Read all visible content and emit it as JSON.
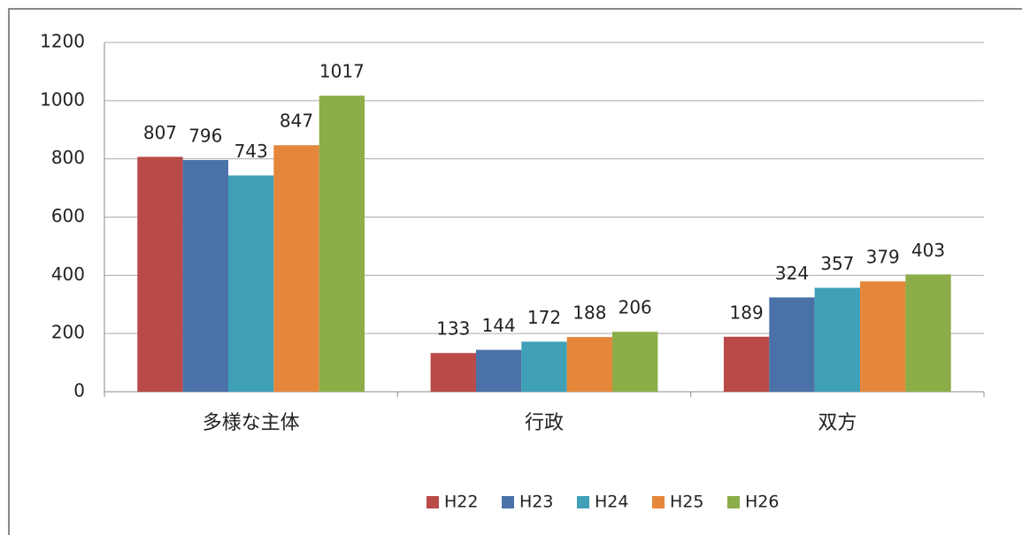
{
  "chart_data": {
    "type": "bar",
    "categories": [
      "多様な主体",
      "行政",
      "双方"
    ],
    "series": [
      {
        "name": "H22",
        "color": "#b94a48",
        "values": [
          807,
          133,
          189
        ]
      },
      {
        "name": "H23",
        "color": "#4a72a8",
        "values": [
          796,
          144,
          324
        ]
      },
      {
        "name": "H24",
        "color": "#3fa0b8",
        "values": [
          743,
          172,
          357
        ]
      },
      {
        "name": "H25",
        "color": "#e5873a",
        "values": [
          847,
          188,
          379
        ]
      },
      {
        "name": "H26",
        "color": "#8cad48",
        "values": [
          1017,
          206,
          403
        ]
      }
    ],
    "ylim": [
      0,
      1200
    ],
    "yticks": [
      0,
      200,
      400,
      600,
      800,
      1000,
      1200
    ],
    "grid": true,
    "legend": "bottom"
  }
}
